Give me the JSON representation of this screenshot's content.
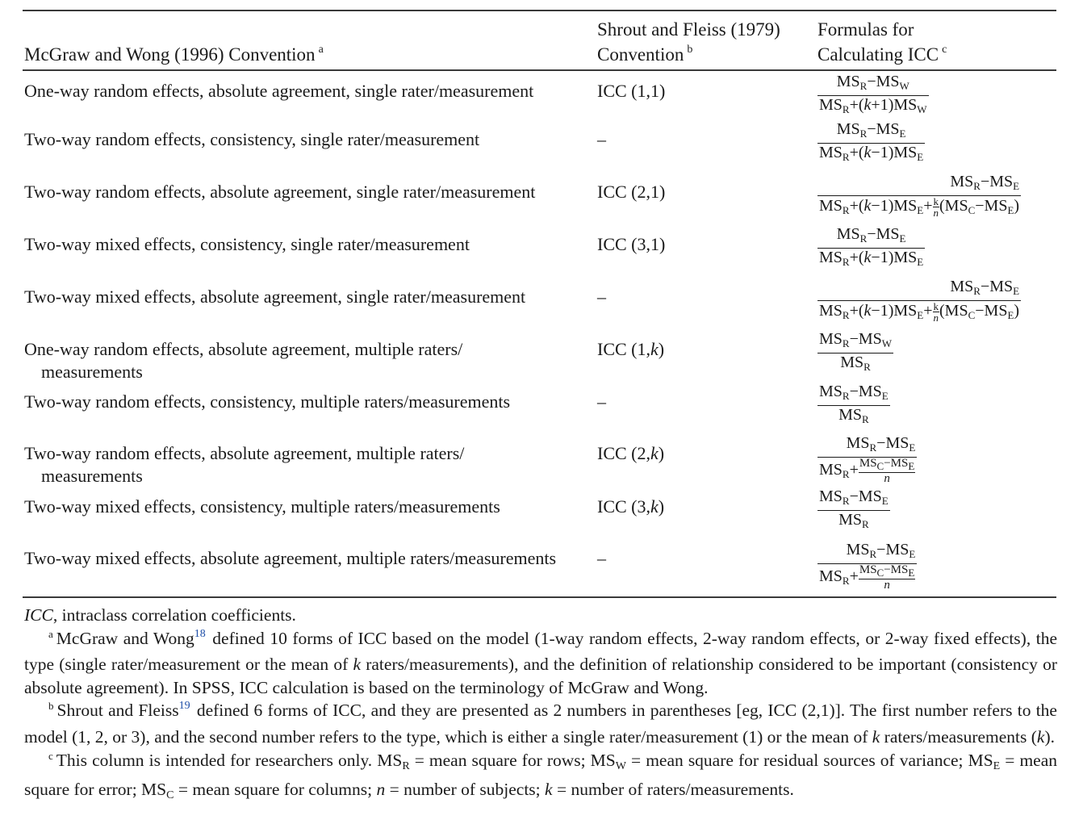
{
  "headers": {
    "convention_mw": "McGraw and Wong (1996) Convention",
    "convention_mw_note": "a",
    "convention_sf_line1": "Shrout and Fleiss (1979)",
    "convention_sf_line2": "Convention",
    "convention_sf_note": "b",
    "formulas_line1": "Formulas for",
    "formulas_line2": "Calculating ICC",
    "formulas_note": "c"
  },
  "rows": [
    {
      "mw": "One-way random effects, absolute agreement, single rater/measurement",
      "mw_cont": "",
      "sf": "ICC (1,1)"
    },
    {
      "mw": "Two-way random effects, consistency, single rater/measurement",
      "mw_cont": "",
      "sf": "–"
    },
    {
      "mw": "Two-way random effects, absolute agreement, single rater/measurement",
      "mw_cont": "",
      "sf": "ICC (2,1)"
    },
    {
      "mw": "Two-way mixed effects, consistency, single rater/measurement",
      "mw_cont": "",
      "sf": "ICC (3,1)"
    },
    {
      "mw": "Two-way mixed effects, absolute agreement, single rater/measurement",
      "mw_cont": "",
      "sf": "–"
    },
    {
      "mw": "One-way random effects, absolute agreement, multiple raters/",
      "mw_cont": "measurements",
      "sf": "ICC (1,k)"
    },
    {
      "mw": "Two-way random effects, consistency, multiple raters/measurements",
      "mw_cont": "",
      "sf": "–"
    },
    {
      "mw": "Two-way random effects, absolute agreement, multiple raters/",
      "mw_cont": "measurements",
      "sf": "ICC (2,k)"
    },
    {
      "mw": "Two-way mixed effects, consistency, multiple raters/measurements",
      "mw_cont": "",
      "sf": "ICC (3,k)"
    },
    {
      "mw": "Two-way mixed effects, absolute agreement, multiple raters/measurements",
      "mw_cont": "",
      "sf": "–"
    }
  ],
  "footnotes": {
    "abbrev_term": "ICC",
    "abbrev_text": ", intraclass correlation coefficients.",
    "a_mark": "a",
    "a_lead": "McGraw and Wong",
    "a_ref": "18",
    "a_text": " defined 10 forms of ICC based on the model (1-way random effects, 2-way random effects, or 2-way fixed effects), the type (single rater/measurement or the mean of k raters/measurements), and the definition of relationship considered to be important (consistency or absolute agreement). In SPSS, ICC calculation is based on the terminology of McGraw and Wong.",
    "b_mark": "b",
    "b_lead": "Shrout and Fleiss",
    "b_ref": "19",
    "b_text": " defined 6 forms of ICC, and they are presented as 2 numbers in parentheses [eg, ICC (2,1)]. The first number refers to the model (1, 2, or 3), and the second number refers to the type, which is either a single rater/measurement (1) or the mean of k raters/measurements (k).",
    "c_mark": "c",
    "c_text": "This column is intended for researchers only. MSR = mean square for rows; MSW = mean square for residual sources of variance; MSE = mean square for error; MSC = mean square for columns; n = number of subjects; k = number of raters/measurements."
  }
}
